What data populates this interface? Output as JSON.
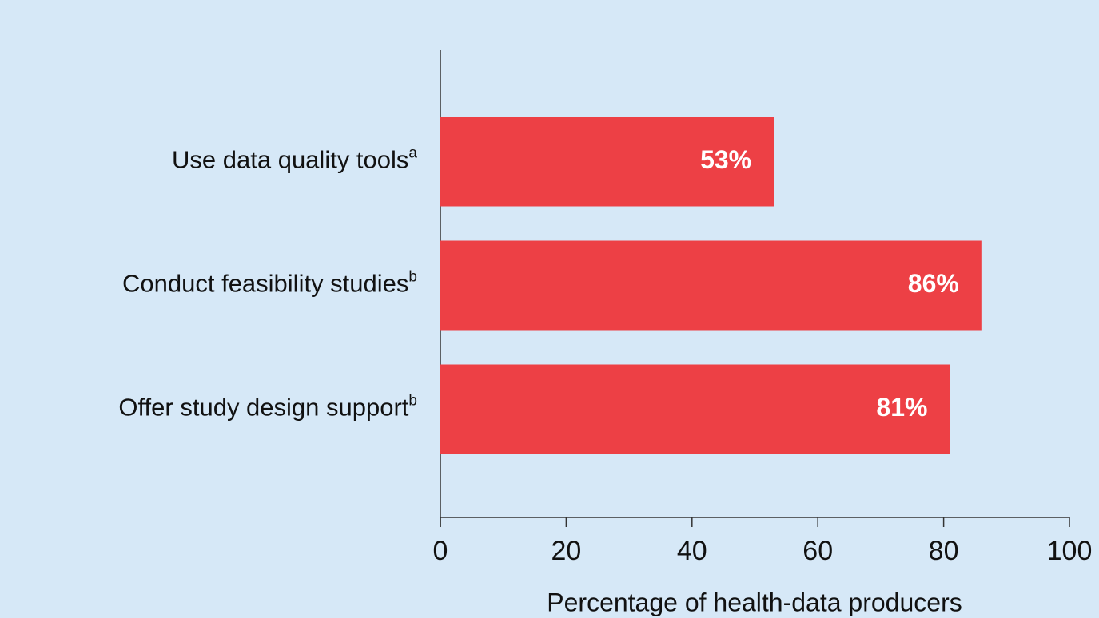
{
  "chart_data": {
    "type": "barh",
    "categories": [
      "Use data quality tools",
      "Conduct feasibility studies",
      "Offer study design support"
    ],
    "category_notes": [
      "a",
      "b",
      "b"
    ],
    "values": [
      53,
      86,
      81
    ],
    "value_labels": [
      "53%",
      "86%",
      "81%"
    ],
    "color": "#ed4045",
    "xlabel": "Percentage of health-data producers",
    "xlim": [
      0,
      100
    ],
    "xticks": [
      0,
      20,
      40,
      60,
      80,
      100
    ]
  }
}
